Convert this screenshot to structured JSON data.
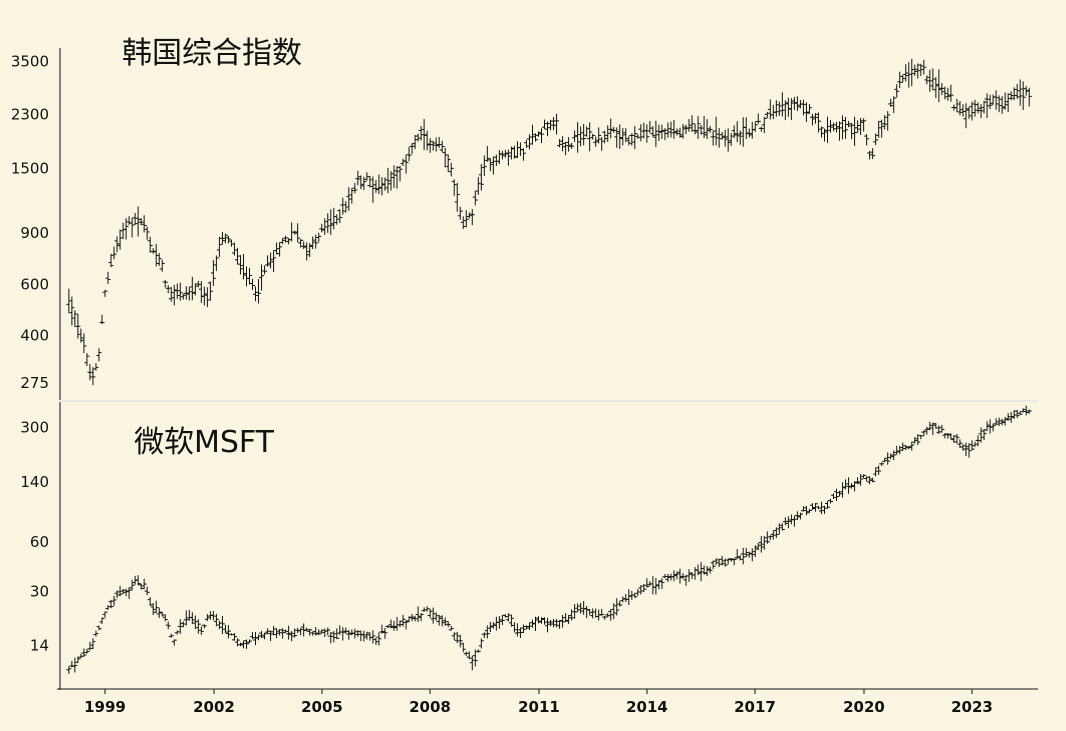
{
  "chart_data": [
    {
      "type": "ohlc",
      "title": "韩国综合指数",
      "scale": "log",
      "y_ticks": [
        275,
        400,
        600,
        900,
        1500,
        2300,
        3500
      ],
      "ylim": [
        240,
        3900
      ],
      "x_ticks": [
        "1999",
        "2002",
        "2005",
        "2008",
        "2011",
        "2014",
        "2017",
        "2020",
        "2023"
      ],
      "xlim": [
        1997.92,
        2024.75
      ],
      "anchors": [
        [
          1998.0,
          520
        ],
        [
          1998.25,
          440
        ],
        [
          1998.45,
          360
        ],
        [
          1998.6,
          280
        ],
        [
          1998.8,
          310
        ],
        [
          1999.0,
          580
        ],
        [
          1999.3,
          800
        ],
        [
          1999.6,
          960
        ],
        [
          1999.9,
          1000
        ],
        [
          2000.1,
          950
        ],
        [
          2000.3,
          800
        ],
        [
          2000.6,
          680
        ],
        [
          2000.8,
          540
        ],
        [
          2001.0,
          560
        ],
        [
          2001.3,
          560
        ],
        [
          2001.6,
          580
        ],
        [
          2001.8,
          520
        ],
        [
          2002.0,
          640
        ],
        [
          2002.2,
          840
        ],
        [
          2002.4,
          880
        ],
        [
          2002.6,
          760
        ],
        [
          2002.8,
          680
        ],
        [
          2003.0,
          620
        ],
        [
          2003.2,
          560
        ],
        [
          2003.5,
          700
        ],
        [
          2003.8,
          780
        ],
        [
          2004.0,
          860
        ],
        [
          2004.3,
          900
        ],
        [
          2004.6,
          780
        ],
        [
          2004.9,
          860
        ],
        [
          2005.1,
          950
        ],
        [
          2005.4,
          1000
        ],
        [
          2005.7,
          1150
        ],
        [
          2006.0,
          1350
        ],
        [
          2006.3,
          1380
        ],
        [
          2006.5,
          1280
        ],
        [
          2006.8,
          1350
        ],
        [
          2007.0,
          1440
        ],
        [
          2007.2,
          1480
        ],
        [
          2007.5,
          1800
        ],
        [
          2007.8,
          2000
        ],
        [
          2008.0,
          1800
        ],
        [
          2008.3,
          1750
        ],
        [
          2008.6,
          1500
        ],
        [
          2008.8,
          1100
        ],
        [
          2008.9,
          950
        ],
        [
          2009.1,
          1000
        ],
        [
          2009.3,
          1250
        ],
        [
          2009.6,
          1600
        ],
        [
          2009.9,
          1650
        ],
        [
          2010.3,
          1700
        ],
        [
          2010.6,
          1750
        ],
        [
          2010.9,
          1950
        ],
        [
          2011.2,
          2100
        ],
        [
          2011.5,
          2130
        ],
        [
          2011.6,
          1800
        ],
        [
          2011.9,
          1830
        ],
        [
          2012.3,
          2000
        ],
        [
          2012.6,
          1900
        ],
        [
          2012.9,
          1960
        ],
        [
          2013.2,
          2000
        ],
        [
          2013.5,
          1850
        ],
        [
          2013.9,
          2000
        ],
        [
          2014.3,
          2000
        ],
        [
          2014.6,
          2030
        ],
        [
          2014.9,
          1950
        ],
        [
          2015.3,
          2100
        ],
        [
          2015.6,
          2050
        ],
        [
          2015.9,
          1950
        ],
        [
          2016.2,
          1900
        ],
        [
          2016.6,
          2000
        ],
        [
          2016.9,
          2030
        ],
        [
          2017.2,
          2150
        ],
        [
          2017.5,
          2380
        ],
        [
          2017.9,
          2500
        ],
        [
          2018.1,
          2500
        ],
        [
          2018.4,
          2400
        ],
        [
          2018.7,
          2300
        ],
        [
          2018.9,
          2050
        ],
        [
          2019.2,
          2150
        ],
        [
          2019.5,
          2100
        ],
        [
          2019.8,
          2000
        ],
        [
          2020.0,
          2200
        ],
        [
          2020.2,
          1600
        ],
        [
          2020.4,
          2000
        ],
        [
          2020.7,
          2350
        ],
        [
          2020.9,
          2700
        ],
        [
          2021.1,
          3100
        ],
        [
          2021.4,
          3250
        ],
        [
          2021.6,
          3300
        ],
        [
          2021.8,
          3100
        ],
        [
          2022.0,
          2900
        ],
        [
          2022.3,
          2700
        ],
        [
          2022.6,
          2450
        ],
        [
          2022.8,
          2300
        ],
        [
          2023.0,
          2400
        ],
        [
          2023.3,
          2450
        ],
        [
          2023.6,
          2600
        ],
        [
          2023.9,
          2500
        ],
        [
          2024.1,
          2700
        ],
        [
          2024.4,
          2750
        ],
        [
          2024.6,
          2700
        ]
      ]
    },
    {
      "type": "ohlc",
      "title": "微软MSFT",
      "scale": "log",
      "y_ticks": [
        14,
        30,
        60,
        140,
        300
      ],
      "ylim": [
        7.5,
        430
      ],
      "x_ticks": [
        "1999",
        "2002",
        "2005",
        "2008",
        "2011",
        "2014",
        "2017",
        "2020",
        "2023"
      ],
      "xlim": [
        1997.92,
        2024.75
      ],
      "anchors": [
        [
          1998.0,
          10
        ],
        [
          1998.4,
          12
        ],
        [
          1998.7,
          15
        ],
        [
          1999.0,
          22
        ],
        [
          1999.3,
          28
        ],
        [
          1999.6,
          30
        ],
        [
          1999.9,
          35
        ],
        [
          2000.1,
          32
        ],
        [
          2000.3,
          24
        ],
        [
          2000.6,
          22
        ],
        [
          2000.9,
          15
        ],
        [
          2001.1,
          19
        ],
        [
          2001.4,
          21
        ],
        [
          2001.7,
          17
        ],
        [
          2001.9,
          22
        ],
        [
          2002.2,
          19
        ],
        [
          2002.5,
          16
        ],
        [
          2002.8,
          14
        ],
        [
          2003.0,
          15
        ],
        [
          2003.3,
          16
        ],
        [
          2003.6,
          17
        ],
        [
          2003.9,
          17
        ],
        [
          2004.2,
          16
        ],
        [
          2004.5,
          18
        ],
        [
          2004.8,
          17
        ],
        [
          2005.1,
          17
        ],
        [
          2005.4,
          16
        ],
        [
          2005.7,
          17
        ],
        [
          2006.0,
          17
        ],
        [
          2006.3,
          16
        ],
        [
          2006.5,
          15
        ],
        [
          2006.8,
          18
        ],
        [
          2007.1,
          19
        ],
        [
          2007.4,
          20
        ],
        [
          2007.7,
          21
        ],
        [
          2007.9,
          23
        ],
        [
          2008.1,
          21
        ],
        [
          2008.5,
          19
        ],
        [
          2008.8,
          15
        ],
        [
          2009.0,
          13
        ],
        [
          2009.2,
          11
        ],
        [
          2009.5,
          16
        ],
        [
          2009.9,
          20
        ],
        [
          2010.2,
          21
        ],
        [
          2010.4,
          17
        ],
        [
          2010.7,
          18
        ],
        [
          2011.0,
          20
        ],
        [
          2011.3,
          19
        ],
        [
          2011.6,
          19
        ],
        [
          2011.9,
          21
        ],
        [
          2012.2,
          24
        ],
        [
          2012.5,
          22
        ],
        [
          2012.8,
          21
        ],
        [
          2013.1,
          23
        ],
        [
          2013.4,
          27
        ],
        [
          2013.7,
          29
        ],
        [
          2014.0,
          32
        ],
        [
          2014.3,
          33
        ],
        [
          2014.6,
          37
        ],
        [
          2014.9,
          38
        ],
        [
          2015.1,
          36
        ],
        [
          2015.4,
          40
        ],
        [
          2015.7,
          40
        ],
        [
          2015.9,
          46
        ],
        [
          2016.2,
          45
        ],
        [
          2016.5,
          47
        ],
        [
          2016.9,
          52
        ],
        [
          2017.2,
          58
        ],
        [
          2017.5,
          66
        ],
        [
          2017.8,
          76
        ],
        [
          2018.1,
          85
        ],
        [
          2018.4,
          93
        ],
        [
          2018.7,
          100
        ],
        [
          2018.9,
          95
        ],
        [
          2019.2,
          115
        ],
        [
          2019.5,
          130
        ],
        [
          2019.8,
          135
        ],
        [
          2020.0,
          150
        ],
        [
          2020.2,
          140
        ],
        [
          2020.5,
          180
        ],
        [
          2020.8,
          200
        ],
        [
          2021.1,
          220
        ],
        [
          2021.4,
          240
        ],
        [
          2021.7,
          280
        ],
        [
          2021.9,
          310
        ],
        [
          2022.2,
          280
        ],
        [
          2022.5,
          260
        ],
        [
          2022.8,
          230
        ],
        [
          2022.95,
          220
        ],
        [
          2023.2,
          260
        ],
        [
          2023.5,
          310
        ],
        [
          2023.8,
          320
        ],
        [
          2024.0,
          340
        ],
        [
          2024.3,
          370
        ],
        [
          2024.6,
          380
        ]
      ]
    }
  ]
}
